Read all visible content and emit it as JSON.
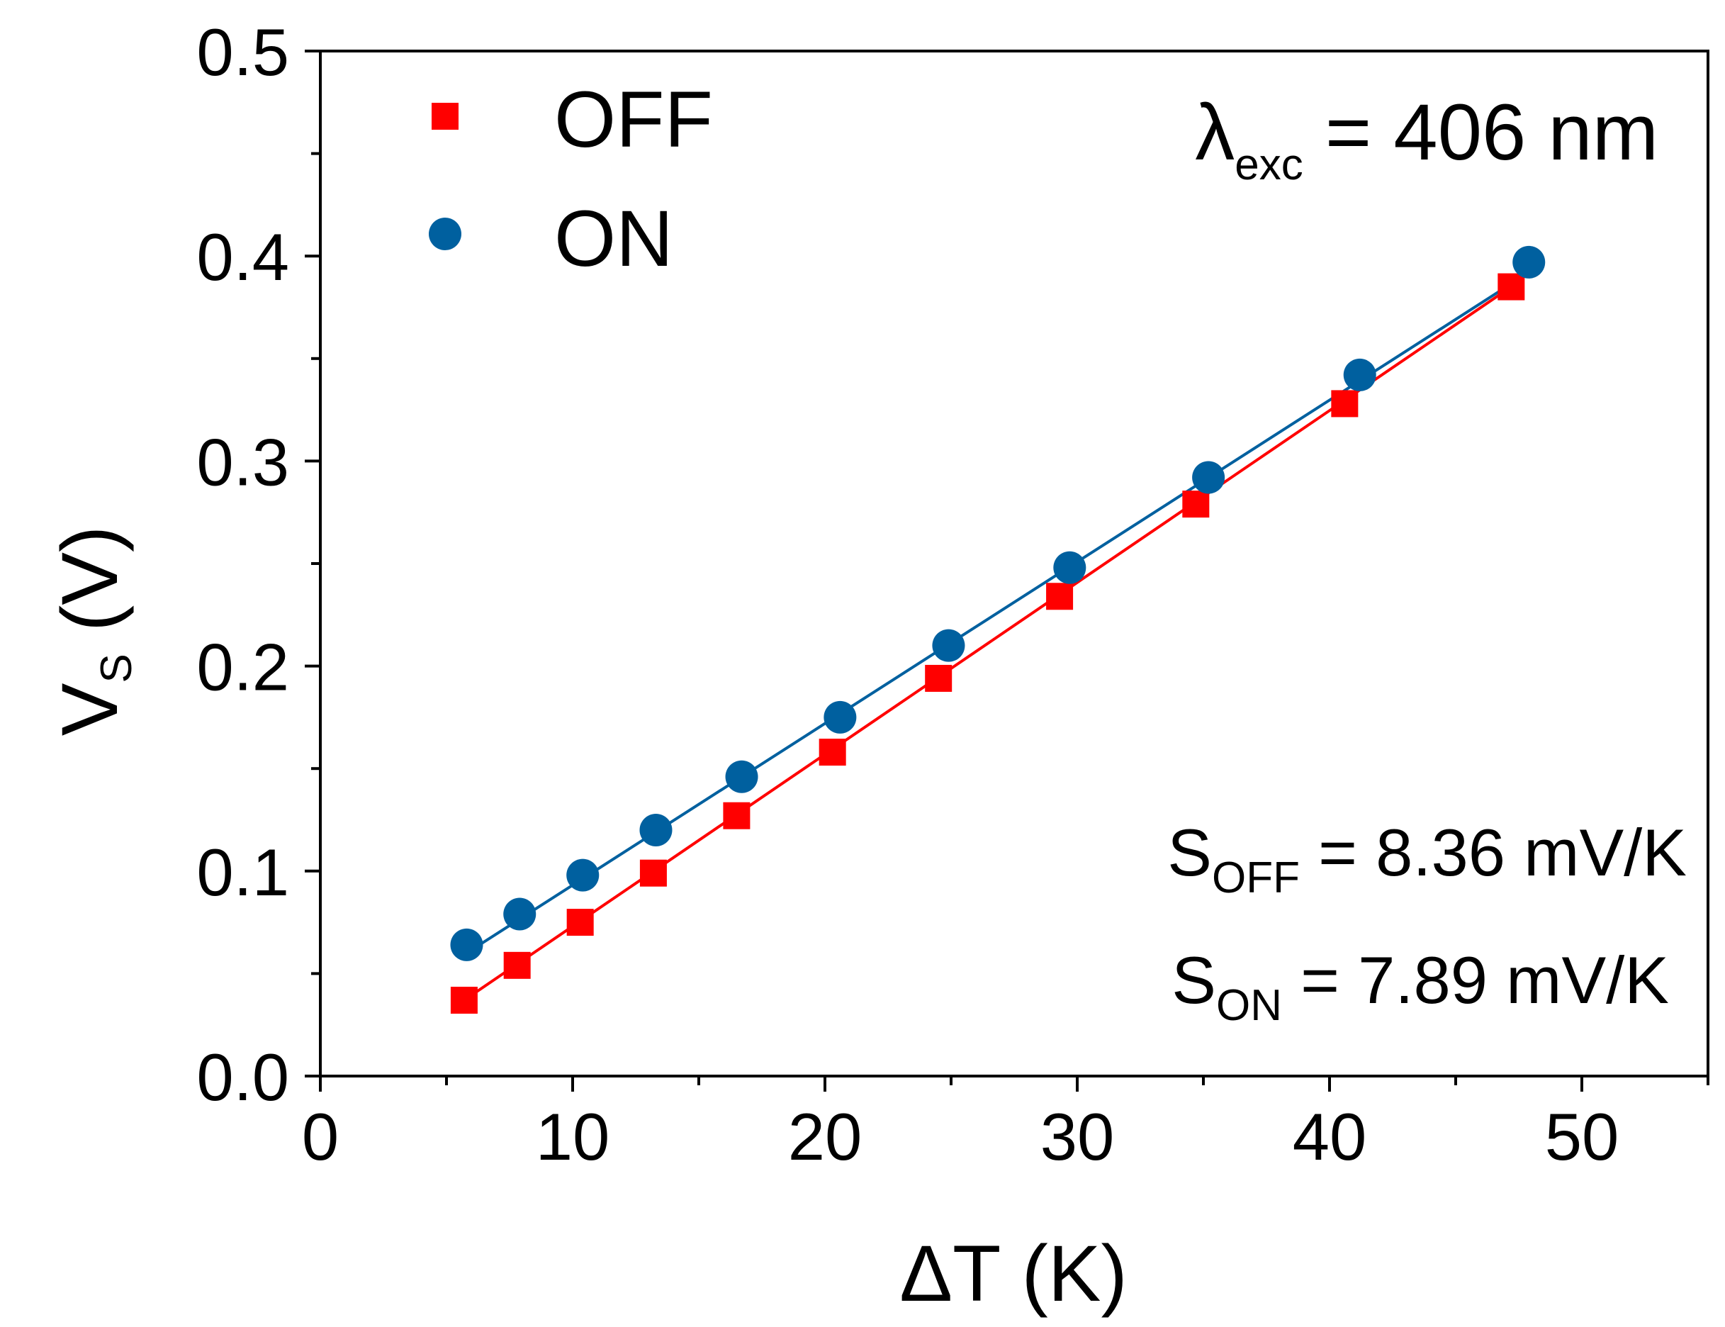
{
  "chart_data": {
    "type": "scatter",
    "xlabel": "ΔT (K)",
    "ylabel_main": "V",
    "ylabel_sub": "S",
    "ylabel_unit": " (V)",
    "xlim": [
      0,
      55
    ],
    "ylim": [
      0,
      0.5
    ],
    "x_ticks": [
      0,
      10,
      20,
      30,
      40,
      50
    ],
    "x_tick_labels": [
      "0",
      "10",
      "20",
      "30",
      "40",
      "50"
    ],
    "x_minor_ticks": [
      5,
      15,
      25,
      35,
      45,
      55
    ],
    "y_ticks": [
      0,
      0.1,
      0.2,
      0.3,
      0.4,
      0.5
    ],
    "y_tick_labels": [
      "0.0",
      "0.1",
      "0.2",
      "0.3",
      "0.4",
      "0.5"
    ],
    "y_minor_ticks": [
      0.05,
      0.15,
      0.25,
      0.35,
      0.45
    ],
    "grid": false,
    "legend_position": "top-left",
    "series": [
      {
        "name": "OFF",
        "marker": "square",
        "color": "#ff0000",
        "x": [
          5.7,
          7.8,
          10.3,
          13.2,
          16.5,
          20.3,
          24.5,
          29.3,
          34.7,
          40.6,
          47.2
        ],
        "y": [
          0.037,
          0.054,
          0.075,
          0.099,
          0.127,
          0.158,
          0.194,
          0.234,
          0.279,
          0.328,
          0.385
        ],
        "fit": {
          "x": [
            5.7,
            47.2
          ],
          "y": [
            0.037,
            0.385
          ]
        }
      },
      {
        "name": "ON",
        "marker": "circle",
        "color": "#00609f",
        "x": [
          5.8,
          7.9,
          10.4,
          13.3,
          16.7,
          20.6,
          24.9,
          29.7,
          35.2,
          41.2,
          47.9
        ],
        "y": [
          0.064,
          0.079,
          0.098,
          0.12,
          0.146,
          0.175,
          0.21,
          0.248,
          0.292,
          0.342,
          0.397
        ],
        "fit": {
          "x": [
            5.8,
            47.9
          ],
          "y": [
            0.06,
            0.392
          ]
        }
      }
    ],
    "annotations": {
      "lambda": {
        "symbol": "λ",
        "sub": "exc",
        "text": " = 406 nm"
      },
      "s_off": {
        "main": "S",
        "sub": "OFF",
        "text": " = 8.36 mV/K"
      },
      "s_on": {
        "main": "S",
        "sub": "ON",
        "text": " = 7.89 mV/K"
      }
    }
  }
}
